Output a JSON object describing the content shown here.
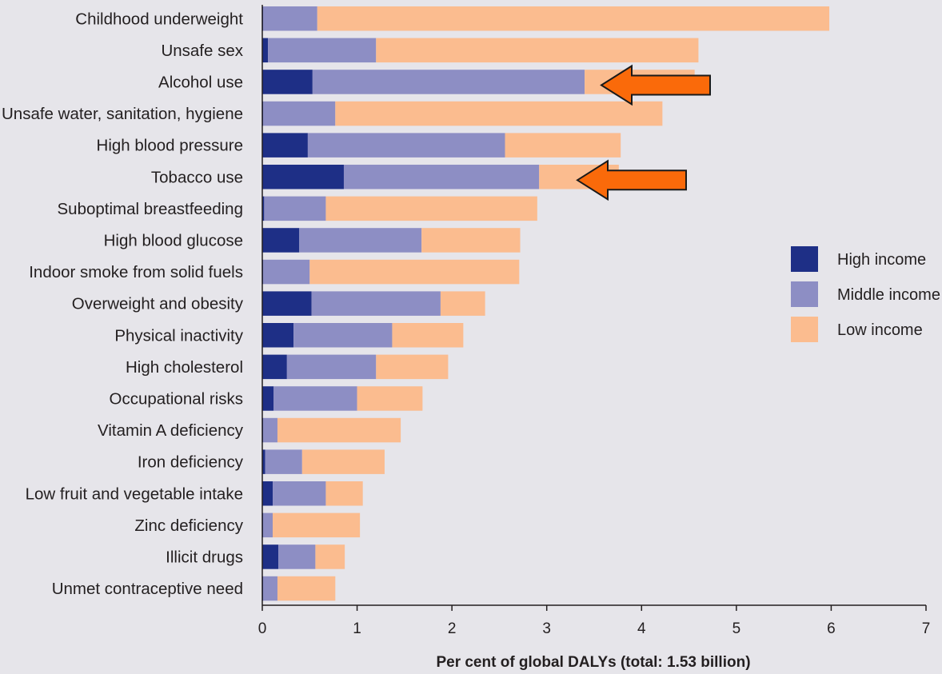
{
  "chart_data": {
    "type": "bar",
    "orientation": "horizontal",
    "stacked": true,
    "categories": [
      "Childhood underweight",
      "Unsafe sex",
      "Alcohol use",
      "Unsafe water, sanitation, hygiene",
      "High blood pressure",
      "Tobacco use",
      "Suboptimal breastfeeding",
      "High blood glucose",
      "Indoor smoke from solid fuels",
      "Overweight and obesity",
      "Physical inactivity",
      "High cholesterol",
      "Occupational risks",
      "Vitamin A deficiency",
      "Iron deficiency",
      "Low fruit and vegetable intake",
      "Zinc deficiency",
      "Illicit drugs",
      "Unmet contraceptive need"
    ],
    "series": [
      {
        "name": "High income",
        "color": "#1e2f86",
        "values": [
          0.01,
          0.06,
          0.53,
          0.01,
          0.48,
          0.86,
          0.02,
          0.39,
          0.01,
          0.52,
          0.33,
          0.26,
          0.12,
          0.01,
          0.03,
          0.11,
          0.01,
          0.17,
          0.01
        ]
      },
      {
        "name": "Middle income",
        "color": "#8d8ec4",
        "values": [
          0.57,
          1.14,
          2.87,
          0.76,
          2.08,
          2.06,
          0.65,
          1.29,
          0.49,
          1.36,
          1.04,
          0.94,
          0.88,
          0.15,
          0.39,
          0.56,
          0.1,
          0.39,
          0.15
        ]
      },
      {
        "name": "Low income",
        "color": "#fbbc8f",
        "values": [
          5.4,
          3.4,
          1.16,
          3.45,
          1.22,
          0.84,
          2.23,
          1.04,
          2.21,
          0.47,
          0.75,
          0.76,
          0.69,
          1.3,
          0.87,
          0.39,
          0.92,
          0.31,
          0.61
        ]
      }
    ],
    "xlim": [
      0,
      7
    ],
    "xticks": [
      "0",
      "1",
      "2",
      "3",
      "4",
      "5",
      "6",
      "7"
    ],
    "xlabel": "Per cent of global DALYs (total: 1.53 billion)",
    "title": "",
    "legend_position": "right",
    "annotations": [
      {
        "type": "arrow",
        "target": "Alcohol use",
        "color": "#fa6a0a"
      },
      {
        "type": "arrow",
        "target": "Tobacco use",
        "color": "#fa6a0a"
      }
    ]
  }
}
